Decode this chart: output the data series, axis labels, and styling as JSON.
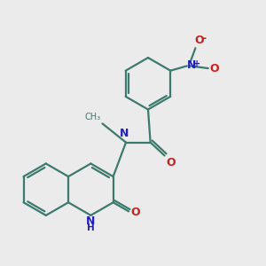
{
  "bg_color": "#ebebeb",
  "bond_color": "#3d7a6e",
  "N_color": "#2020bb",
  "O_color": "#cc2020",
  "lw": 1.6,
  "r": 0.55,
  "xlim": [
    0.2,
    5.8
  ],
  "ylim": [
    0.3,
    5.8
  ]
}
